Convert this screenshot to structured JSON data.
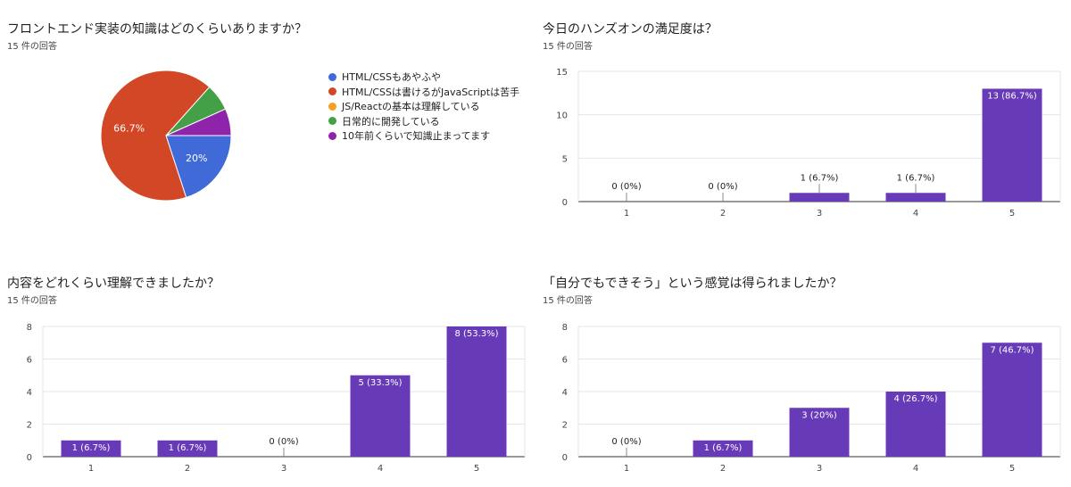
{
  "colors": {
    "bar": "#673ab7",
    "grid": "#e6e6e6",
    "axis": "#333333"
  },
  "chart_data": [
    {
      "type": "pie",
      "title": "フロントエンド実装の知識はどのくらいありますか？",
      "subtitle": "15 件の回答",
      "labels": [
        "HTML/CSSもあやふや",
        "HTML/CSSは書けるがJavaScriptは苦手",
        "JS/Reactの基本は理解している",
        "日常的に開発している",
        "10年前くらいで知識止まってます"
      ],
      "values": [
        20,
        66.7,
        0,
        6.7,
        6.7
      ],
      "slice_labels": [
        "20%",
        "66.7%",
        "",
        "",
        ""
      ],
      "colors": [
        "#3f6ad8",
        "#d24726",
        "#f4a020",
        "#43a047",
        "#8e24aa"
      ],
      "legend": "right"
    },
    {
      "type": "bar",
      "title": "今日のハンズオンの満足度は？",
      "subtitle": "15 件の回答",
      "categories": [
        "1",
        "2",
        "3",
        "4",
        "5"
      ],
      "values": [
        0,
        0,
        1,
        1,
        13
      ],
      "value_labels": [
        "0 (0%)",
        "0 (0%)",
        "1 (6.7%)",
        "1 (6.7%)",
        "13 (86.7%)"
      ],
      "yticks": [
        0,
        5,
        10,
        15
      ],
      "ylim": [
        0,
        15
      ],
      "grid": true
    },
    {
      "type": "bar",
      "title": "内容をどれくらい理解できましたか？",
      "subtitle": "15 件の回答",
      "categories": [
        "1",
        "2",
        "3",
        "4",
        "5"
      ],
      "values": [
        1,
        1,
        0,
        5,
        8
      ],
      "value_labels": [
        "1 (6.7%)",
        "1 (6.7%)",
        "0 (0%)",
        "5 (33.3%)",
        "8 (53.3%)"
      ],
      "yticks": [
        0,
        2,
        4,
        6,
        8
      ],
      "ylim": [
        0,
        8
      ],
      "grid": true
    },
    {
      "type": "bar",
      "title": "「自分でもできそう」という感覚は得られましたか？",
      "subtitle": "15 件の回答",
      "categories": [
        "1",
        "2",
        "3",
        "4",
        "5"
      ],
      "values": [
        0,
        1,
        3,
        4,
        7
      ],
      "value_labels": [
        "0 (0%)",
        "1 (6.7%)",
        "3 (20%)",
        "4 (26.7%)",
        "7 (46.7%)"
      ],
      "yticks": [
        0,
        2,
        4,
        6,
        8
      ],
      "ylim": [
        0,
        8
      ],
      "grid": true
    }
  ]
}
